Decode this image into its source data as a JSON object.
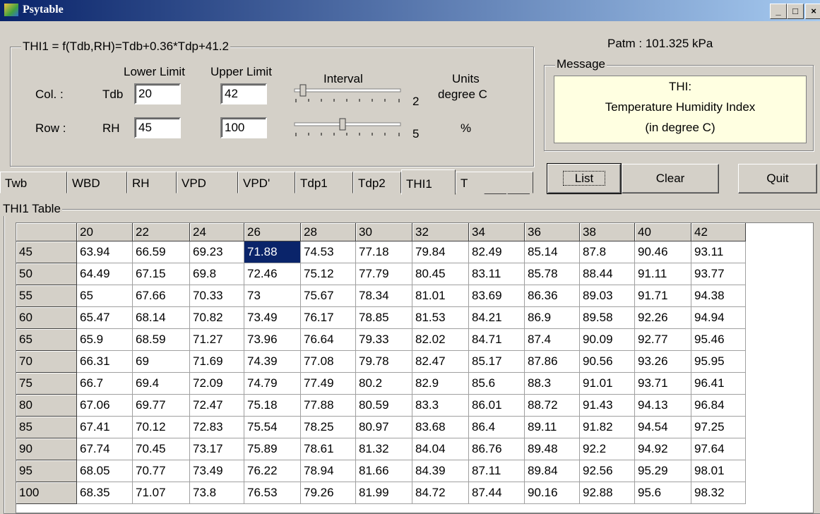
{
  "window": {
    "title": "Psytable"
  },
  "formula": {
    "legend": "THI1 = f(Tdb,RH)=Tdb+0.36*Tdp+41.2",
    "headers": [
      "Lower Limit",
      "Upper Limit",
      "Interval",
      "Units"
    ],
    "rows": [
      {
        "label": "Col. :",
        "var": "Tdb",
        "lower": "20",
        "upper": "42",
        "interval": "2",
        "units": "degree C"
      },
      {
        "label": "Row :",
        "var": "RH",
        "lower": "45",
        "upper": "100",
        "interval": "5",
        "units": "%"
      }
    ]
  },
  "patm": "Patm : 101.325 kPa",
  "message": {
    "legend": "Message",
    "lines": [
      "THI:",
      "Temperature Humidity Index",
      "(in degree C)"
    ]
  },
  "tabs": [
    "Twb",
    "WBD",
    "RH",
    "VPD",
    "VPD'",
    "Tdp1",
    "Tdp2",
    "THI1",
    "T"
  ],
  "buttons": [
    "List",
    "Clear",
    "Quit"
  ],
  "table": {
    "legend": "THI1 Table",
    "columns": [
      "20",
      "22",
      "24",
      "26",
      "28",
      "30",
      "32",
      "34",
      "36",
      "38",
      "40",
      "42"
    ],
    "rows": [
      {
        "label": "45",
        "cells": [
          "63.94",
          "66.59",
          "69.23",
          "71.88",
          "74.53",
          "77.18",
          "79.84",
          "82.49",
          "85.14",
          "87.8",
          "90.46",
          "93.11"
        ]
      },
      {
        "label": "50",
        "cells": [
          "64.49",
          "67.15",
          "69.8",
          "72.46",
          "75.12",
          "77.79",
          "80.45",
          "83.11",
          "85.78",
          "88.44",
          "91.11",
          "93.77"
        ]
      },
      {
        "label": "55",
        "cells": [
          "65",
          "67.66",
          "70.33",
          "73",
          "75.67",
          "78.34",
          "81.01",
          "83.69",
          "86.36",
          "89.03",
          "91.71",
          "94.38"
        ]
      },
      {
        "label": "60",
        "cells": [
          "65.47",
          "68.14",
          "70.82",
          "73.49",
          "76.17",
          "78.85",
          "81.53",
          "84.21",
          "86.9",
          "89.58",
          "92.26",
          "94.94"
        ]
      },
      {
        "label": "65",
        "cells": [
          "65.9",
          "68.59",
          "71.27",
          "73.96",
          "76.64",
          "79.33",
          "82.02",
          "84.71",
          "87.4",
          "90.09",
          "92.77",
          "95.46"
        ]
      },
      {
        "label": "70",
        "cells": [
          "66.31",
          "69",
          "71.69",
          "74.39",
          "77.08",
          "79.78",
          "82.47",
          "85.17",
          "87.86",
          "90.56",
          "93.26",
          "95.95"
        ]
      },
      {
        "label": "75",
        "cells": [
          "66.7",
          "69.4",
          "72.09",
          "74.79",
          "77.49",
          "80.2",
          "82.9",
          "85.6",
          "88.3",
          "91.01",
          "93.71",
          "96.41"
        ]
      },
      {
        "label": "80",
        "cells": [
          "67.06",
          "69.77",
          "72.47",
          "75.18",
          "77.88",
          "80.59",
          "83.3",
          "86.01",
          "88.72",
          "91.43",
          "94.13",
          "96.84"
        ]
      },
      {
        "label": "85",
        "cells": [
          "67.41",
          "70.12",
          "72.83",
          "75.54",
          "78.25",
          "80.97",
          "83.68",
          "86.4",
          "89.11",
          "91.82",
          "94.54",
          "97.25"
        ]
      },
      {
        "label": "90",
        "cells": [
          "67.74",
          "70.45",
          "73.17",
          "75.89",
          "78.61",
          "81.32",
          "84.04",
          "86.76",
          "89.48",
          "92.2",
          "94.92",
          "97.64"
        ]
      },
      {
        "label": "95",
        "cells": [
          "68.05",
          "70.77",
          "73.49",
          "76.22",
          "78.94",
          "81.66",
          "84.39",
          "87.11",
          "89.84",
          "92.56",
          "95.29",
          "98.01"
        ]
      },
      {
        "label": "100",
        "cells": [
          "68.35",
          "71.07",
          "73.8",
          "76.53",
          "79.26",
          "81.99",
          "84.72",
          "87.44",
          "90.16",
          "92.88",
          "95.6",
          "98.32"
        ]
      }
    ]
  }
}
